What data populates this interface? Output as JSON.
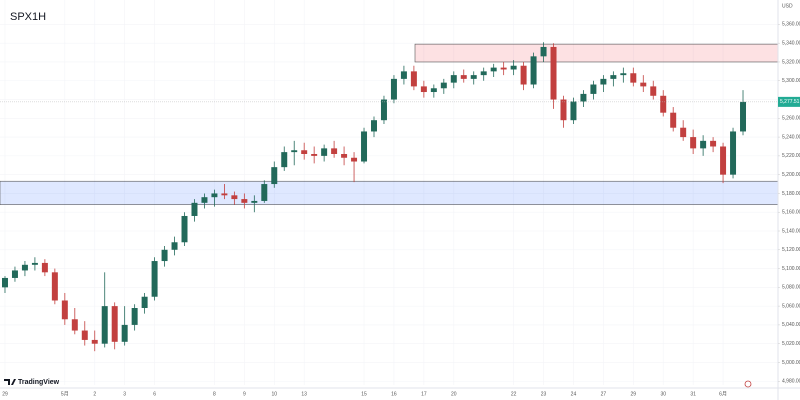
{
  "chart_data": {
    "type": "candlestick",
    "title": "SPX1H",
    "currency": "USD",
    "brand": "TradingView",
    "categories": [
      "29",
      null,
      null,
      null,
      null,
      null,
      "5月",
      null,
      null,
      "2",
      null,
      null,
      "3",
      null,
      null,
      "6",
      null,
      null,
      null,
      null,
      null,
      "8",
      null,
      null,
      "9",
      null,
      null,
      "10",
      null,
      null,
      "13",
      null,
      null,
      null,
      null,
      null,
      "15",
      null,
      null,
      "16",
      null,
      null,
      "17",
      null,
      null,
      "20",
      null,
      null,
      null,
      null,
      null,
      "22",
      null,
      null,
      "23",
      null,
      null,
      "24",
      null,
      null,
      "27",
      null,
      null,
      "29",
      null,
      null,
      "30",
      null,
      null,
      "31",
      null,
      null,
      "6月",
      null,
      null
    ],
    "open": [
      5080,
      5090,
      5098,
      5104,
      5106,
      5096,
      5066,
      5046,
      5034,
      5024,
      5020,
      5060,
      5022,
      5040,
      5058,
      5070,
      5108,
      5120,
      5128,
      5156,
      5170,
      5176,
      5180,
      5178,
      5174,
      5170,
      5172,
      5190,
      5208,
      5224,
      5226,
      5222,
      5220,
      5228,
      5222,
      5218,
      5214,
      5246,
      5258,
      5280,
      5302,
      5310,
      5294,
      5288,
      5292,
      5298,
      5306,
      5302,
      5306,
      5310,
      5314,
      5312,
      5316,
      5296,
      5326,
      5336,
      5280,
      5258,
      5278,
      5286,
      5296,
      5302,
      5306,
      5308,
      5298,
      5294,
      5284,
      5266,
      5250,
      5240,
      5228,
      5236,
      5230,
      5200,
      5246
    ],
    "high": [
      5092,
      5102,
      5108,
      5112,
      5110,
      5100,
      5074,
      5058,
      5044,
      5034,
      5096,
      5064,
      5060,
      5062,
      5074,
      5112,
      5124,
      5134,
      5160,
      5174,
      5180,
      5184,
      5190,
      5182,
      5180,
      5178,
      5194,
      5214,
      5230,
      5236,
      5234,
      5230,
      5232,
      5236,
      5230,
      5224,
      5250,
      5262,
      5284,
      5306,
      5316,
      5316,
      5300,
      5296,
      5302,
      5310,
      5312,
      5310,
      5314,
      5318,
      5320,
      5322,
      5320,
      5330,
      5341,
      5340,
      5284,
      5282,
      5290,
      5300,
      5306,
      5310,
      5314,
      5314,
      5306,
      5300,
      5290,
      5272,
      5258,
      5248,
      5242,
      5240,
      5234,
      5250,
      5290
    ],
    "low": [
      5074,
      5086,
      5092,
      5098,
      5092,
      5062,
      5040,
      5030,
      5018,
      5012,
      5016,
      5014,
      5018,
      5034,
      5052,
      5066,
      5102,
      5114,
      5124,
      5150,
      5164,
      5166,
      5174,
      5168,
      5164,
      5160,
      5170,
      5186,
      5204,
      5210,
      5216,
      5212,
      5214,
      5218,
      5210,
      5192,
      5212,
      5240,
      5254,
      5276,
      5296,
      5290,
      5282,
      5282,
      5286,
      5292,
      5298,
      5296,
      5300,
      5304,
      5306,
      5306,
      5290,
      5292,
      5320,
      5270,
      5250,
      5254,
      5272,
      5280,
      5288,
      5294,
      5298,
      5294,
      5288,
      5280,
      5262,
      5246,
      5236,
      5222,
      5220,
      5224,
      5191,
      5196,
      5242
    ],
    "close": [
      5090,
      5098,
      5104,
      5106,
      5096,
      5066,
      5046,
      5034,
      5024,
      5020,
      5060,
      5022,
      5040,
      5058,
      5070,
      5108,
      5120,
      5128,
      5156,
      5170,
      5176,
      5180,
      5178,
      5174,
      5170,
      5172,
      5190,
      5208,
      5224,
      5226,
      5222,
      5220,
      5228,
      5222,
      5218,
      5214,
      5246,
      5258,
      5280,
      5302,
      5310,
      5294,
      5288,
      5292,
      5298,
      5306,
      5302,
      5306,
      5310,
      5314,
      5312,
      5316,
      5296,
      5326,
      5336,
      5280,
      5258,
      5278,
      5286,
      5296,
      5302,
      5306,
      5308,
      5298,
      5294,
      5284,
      5266,
      5250,
      5240,
      5228,
      5236,
      5230,
      5200,
      5246,
      5277.51
    ],
    "up_color": "#22695a",
    "down_color": "#c2403f",
    "last_price": {
      "value": 5277.51,
      "label": "5,277.51"
    },
    "last_price_color": "#22ab94",
    "zones": [
      {
        "low": 5320,
        "high": 5339,
        "color": "#f23645"
      },
      {
        "low": 5168,
        "high": 5193,
        "color": "#2962ff"
      }
    ],
    "ylim": [
      4976,
      5386
    ],
    "yticks": [
      {
        "value": 4980,
        "label": "4,980.00"
      },
      {
        "value": 5000,
        "label": "5,000.00"
      },
      {
        "value": 5020,
        "label": "5,020.00"
      },
      {
        "value": 5040,
        "label": "5,040.00"
      },
      {
        "value": 5060,
        "label": "5,060.00"
      },
      {
        "value": 5080,
        "label": "5,080.00"
      },
      {
        "value": 5100,
        "label": "5,100.00"
      },
      {
        "value": 5120,
        "label": "5,120.00"
      },
      {
        "value": 5140,
        "label": "5,140.00"
      },
      {
        "value": 5160,
        "label": "5,160.00"
      },
      {
        "value": 5180,
        "label": "5,180.00"
      },
      {
        "value": 5200,
        "label": "5,200.00"
      },
      {
        "value": 5220,
        "label": "5,220.00"
      },
      {
        "value": 5240,
        "label": "5,240.00"
      },
      {
        "value": 5260,
        "label": "5,260.00"
      },
      {
        "value": 5280,
        "label": "5,280.00"
      },
      {
        "value": 5300,
        "label": "5,300.00"
      },
      {
        "value": 5320,
        "label": "5,320.00"
      },
      {
        "value": 5340,
        "label": "5,340.00"
      },
      {
        "value": 5360,
        "label": "5,360.00"
      }
    ],
    "grid": true
  }
}
